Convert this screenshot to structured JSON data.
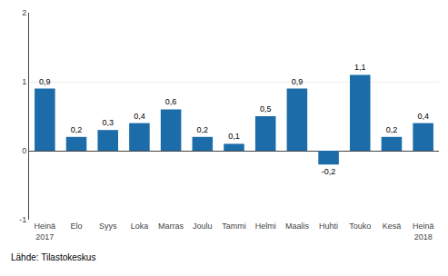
{
  "chart_data": {
    "type": "bar",
    "categories": [
      "Heinä\n2017",
      "Elo",
      "Syys",
      "Loka",
      "Marras",
      "Joulu",
      "Tammi",
      "Helmi",
      "Maalis",
      "Huhti",
      "Touko",
      "Kesä",
      "Heinä\n2018"
    ],
    "values": [
      0.9,
      0.2,
      0.3,
      0.4,
      0.6,
      0.2,
      0.1,
      0.5,
      0.9,
      -0.2,
      1.1,
      0.2,
      0.4
    ],
    "value_labels": [
      "0,9",
      "0,2",
      "0,3",
      "0,4",
      "0,6",
      "0,2",
      "0,1",
      "0,5",
      "0,9",
      "-0,2",
      "1,1",
      "0,2",
      "0,4"
    ],
    "data_labels": true,
    "color": "#1b6ca8",
    "ylim": [
      -1.0,
      2.0
    ],
    "yticks": [
      -1,
      0,
      1,
      2
    ],
    "grid": true,
    "annotations": [
      "Lähde: Tilastokeskus"
    ]
  }
}
